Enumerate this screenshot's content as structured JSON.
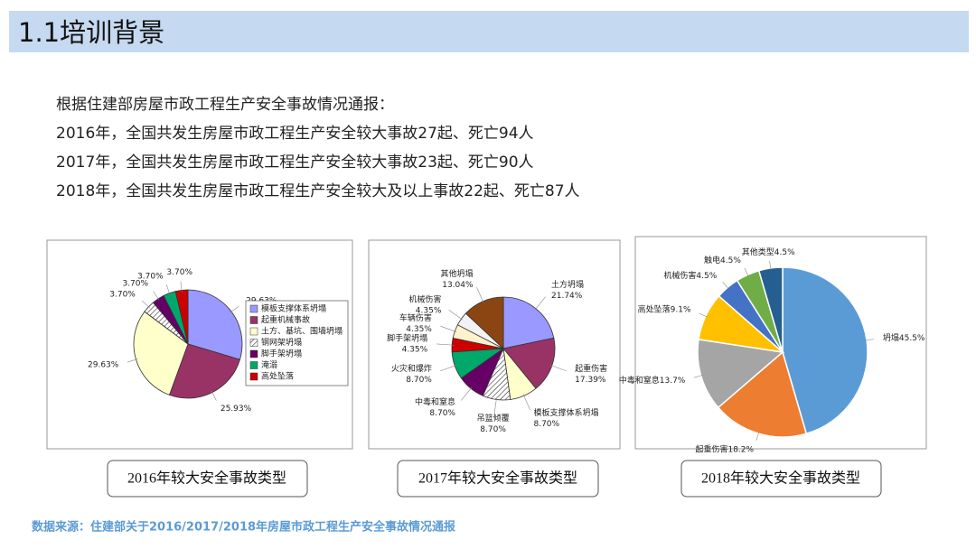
{
  "header": {
    "title": "1.1培训背景"
  },
  "intro": [
    "根据住建部房屋市政工程生产安全事故情况通报：",
    "2016年，全国共发生房屋市政工程生产安全较大事故27起、死亡94人",
    "2017年，全国共发生房屋市政工程生产安全较大事故23起、死亡90人",
    "2018年，全国共发生房屋市政工程生产安全较大及以上事故22起、死亡87人"
  ],
  "chart_data": [
    {
      "type": "pie",
      "title": "2016年较大安全事故类型",
      "categories": [
        "模板支撑体系坍塌",
        "起重机械事故",
        "土方、基坑、围墙坍塌",
        "钢网架坍塌",
        "脚手架坍塌",
        "淹溺",
        "高处坠落"
      ],
      "values": [
        29.63,
        25.93,
        29.63,
        3.7,
        3.7,
        3.7,
        3.7
      ],
      "value_labels": [
        "29.63%",
        "25.93%",
        "29.63%",
        "3.70%",
        "3.70%",
        "3.70%",
        "3.70%"
      ],
      "colors": [
        "#9999ff",
        "#993366",
        "#ffffcc",
        "#ffffff",
        "#660066",
        "#00a86b",
        "#cc0000"
      ],
      "hatched_slices": [
        3
      ],
      "legend": "right"
    },
    {
      "type": "pie",
      "title": "2017年较大安全事故类型",
      "categories": [
        "土方坍塌",
        "起重伤害",
        "模板支撑体系坍塌",
        "吊篮倾覆",
        "中毒和窒息",
        "火灾和爆炸",
        "脚手架坍塌",
        "车辆伤害",
        "机械伤害",
        "其他坍塌"
      ],
      "values": [
        21.74,
        17.39,
        8.7,
        8.7,
        8.7,
        8.7,
        4.35,
        4.35,
        4.35,
        13.04
      ],
      "value_labels": [
        "21.74%",
        "17.39%",
        "8.70%",
        "8.70%",
        "8.70%",
        "8.70%",
        "4.35%",
        "4.35%",
        "4.35%",
        "13.04%"
      ],
      "colors": [
        "#9999ff",
        "#993366",
        "#ffffcc",
        "#ffffff",
        "#660066",
        "#00a86b",
        "#cc0000",
        "#fff2cc",
        "#f2f2f2",
        "#8b4513"
      ],
      "hatched_slices": [
        3
      ]
    },
    {
      "type": "pie",
      "title": "2018年较大安全事故类型",
      "categories": [
        "坍塌",
        "起重伤害",
        "中毒和窒息",
        "高处坠落",
        "机械伤害",
        "触电",
        "其他类型"
      ],
      "values": [
        45.5,
        18.2,
        13.7,
        9.1,
        4.5,
        4.5,
        4.5
      ],
      "value_labels": [
        "45.5%",
        "18.2%",
        "13.7%",
        "9.1%",
        "4.5%",
        "4.5%",
        "4.5%"
      ],
      "colors": [
        "#5b9bd5",
        "#ed7d31",
        "#a5a5a5",
        "#ffc000",
        "#4472c4",
        "#70ad47",
        "#255e91"
      ]
    }
  ],
  "source": "数据来源：住建部关于2016/2017/2018年房屋市政工程生产安全事故情况通报"
}
